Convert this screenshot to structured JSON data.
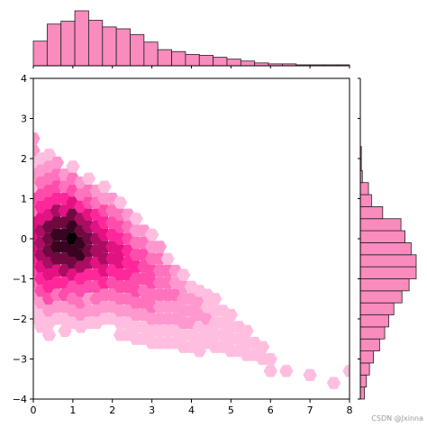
{
  "watermark": "CSDN @Jxinna",
  "chart_data": {
    "type": "hexbin-jointplot",
    "xlim": [
      0,
      8
    ],
    "ylim": [
      -4,
      4
    ],
    "x_ticks": [
      0,
      1,
      2,
      3,
      4,
      5,
      6,
      7,
      8
    ],
    "y_ticks": [
      -4,
      -3,
      -2,
      -1,
      0,
      1,
      2,
      3,
      4
    ],
    "x_tick_labels": [
      "0",
      "1",
      "2",
      "3",
      "4",
      "5",
      "6",
      "7",
      "8"
    ],
    "y_tick_labels": [
      "−4",
      "−3",
      "−2",
      "−1",
      "0",
      "1",
      "2",
      "3",
      "4"
    ],
    "grid": false,
    "colors": {
      "hex_max": "#000000",
      "hex_mid": "#ff1493",
      "hex_min": "#ffe4f0",
      "hist_fill": "#f98bbd",
      "hist_edge": "#222222"
    },
    "hexbin": {
      "columns": [
        {
          "x": 0.0,
          "y0": 2.5,
          "counts": [
            2,
            2,
            1,
            2,
            1,
            4,
            3,
            6,
            6,
            6,
            5,
            4,
            3,
            2,
            1,
            1
          ]
        },
        {
          "x": 0.2,
          "y0": 2.0,
          "counts": [
            1,
            2,
            3,
            4,
            5,
            6,
            7,
            7,
            7,
            6,
            5,
            4,
            2,
            1,
            1
          ]
        },
        {
          "x": 0.4,
          "y0": 2.1,
          "counts": [
            1,
            2,
            3,
            4,
            5,
            6,
            8,
            8,
            8,
            7,
            6,
            5,
            4,
            2,
            1,
            1
          ]
        },
        {
          "x": 0.6,
          "y0": 1.9,
          "counts": [
            2,
            3,
            4,
            5,
            7,
            8,
            9,
            9,
            8,
            6,
            5,
            3,
            2,
            1
          ]
        },
        {
          "x": 0.8,
          "y0": 1.6,
          "counts": [
            2,
            3,
            5,
            6,
            8,
            9,
            9,
            8,
            7,
            5,
            4,
            2,
            1,
            1
          ]
        },
        {
          "x": 1.0,
          "y0": 1.8,
          "counts": [
            1,
            3,
            4,
            6,
            8,
            9,
            10,
            9,
            8,
            6,
            4,
            3,
            2,
            1
          ]
        },
        {
          "x": 1.2,
          "y0": 1.4,
          "counts": [
            2,
            3,
            5,
            7,
            8,
            9,
            9,
            7,
            5,
            4,
            3,
            2,
            1
          ]
        },
        {
          "x": 1.4,
          "y0": 1.5,
          "counts": [
            1,
            3,
            4,
            6,
            7,
            8,
            8,
            7,
            5,
            4,
            2,
            2,
            1
          ]
        },
        {
          "x": 1.6,
          "y0": 1.2,
          "counts": [
            2,
            3,
            5,
            6,
            7,
            7,
            6,
            5,
            4,
            3,
            2,
            1
          ]
        },
        {
          "x": 1.8,
          "y0": 1.3,
          "counts": [
            1,
            2,
            4,
            5,
            6,
            7,
            7,
            6,
            5,
            3,
            2,
            1
          ]
        },
        {
          "x": 2.0,
          "y0": 1.0,
          "counts": [
            2,
            3,
            4,
            5,
            6,
            6,
            5,
            4,
            3,
            2,
            1
          ]
        },
        {
          "x": 2.2,
          "y0": 0.9,
          "counts": [
            1,
            3,
            4,
            5,
            6,
            6,
            5,
            4,
            3,
            2,
            1,
            1
          ]
        },
        {
          "x": 2.4,
          "y0": 0.6,
          "counts": [
            2,
            3,
            4,
            5,
            5,
            5,
            4,
            3,
            2,
            1,
            1
          ]
        },
        {
          "x": 2.6,
          "y0": 0.5,
          "counts": [
            1,
            2,
            3,
            4,
            5,
            4,
            4,
            3,
            2,
            1,
            1
          ]
        },
        {
          "x": 2.8,
          "y0": 0.2,
          "counts": [
            2,
            3,
            4,
            4,
            4,
            3,
            3,
            2,
            1,
            1
          ]
        },
        {
          "x": 3.0,
          "y0": 0.1,
          "counts": [
            1,
            2,
            3,
            4,
            4,
            3,
            3,
            2,
            1,
            1
          ]
        },
        {
          "x": 3.2,
          "y0": -0.2,
          "counts": [
            2,
            3,
            3,
            3,
            3,
            2,
            2,
            1,
            1
          ]
        },
        {
          "x": 3.4,
          "y0": -0.5,
          "counts": [
            1,
            3,
            3,
            3,
            2,
            2,
            1,
            1
          ]
        },
        {
          "x": 3.6,
          "y0": -0.8,
          "counts": [
            2,
            2,
            3,
            2,
            2,
            1,
            1
          ]
        },
        {
          "x": 3.8,
          "y0": -0.9,
          "counts": [
            1,
            2,
            2,
            2,
            2,
            1,
            1
          ]
        },
        {
          "x": 4.0,
          "y0": -1.2,
          "counts": [
            1,
            2,
            2,
            2,
            1,
            1
          ]
        },
        {
          "x": 4.2,
          "y0": -1.3,
          "counts": [
            1,
            2,
            2,
            1,
            1,
            1
          ]
        },
        {
          "x": 4.4,
          "y0": -1.4,
          "counts": [
            1,
            1,
            2,
            1,
            1
          ]
        },
        {
          "x": 4.6,
          "y0": -1.5,
          "counts": [
            1,
            1,
            1,
            1,
            1
          ]
        },
        {
          "x": 4.8,
          "y0": -1.8,
          "counts": [
            1,
            1,
            1,
            1
          ]
        },
        {
          "x": 5.0,
          "y0": -1.9,
          "counts": [
            1,
            1,
            1,
            1
          ]
        },
        {
          "x": 5.2,
          "y0": -2.2,
          "counts": [
            1,
            1,
            1
          ]
        },
        {
          "x": 5.4,
          "y0": -2.3,
          "counts": [
            1,
            1,
            1
          ]
        },
        {
          "x": 5.6,
          "y0": -2.6,
          "counts": [
            1,
            1
          ]
        },
        {
          "x": 5.8,
          "y0": -2.7,
          "counts": [
            1,
            1
          ]
        },
        {
          "x": 6.0,
          "y0": -3.0,
          "counts": [
            1,
            1
          ]
        },
        {
          "x": 6.4,
          "y0": -3.3,
          "counts": [
            1
          ]
        },
        {
          "x": 7.0,
          "y0": -3.4,
          "counts": [
            1
          ]
        },
        {
          "x": 7.6,
          "y0": -3.6,
          "counts": [
            1
          ]
        },
        {
          "x": 8.0,
          "y0": -3.3,
          "counts": [
            1
          ]
        }
      ]
    },
    "x_marginal_histogram": {
      "bin_edges": [
        0,
        0.35,
        0.7,
        1.05,
        1.4,
        1.75,
        2.1,
        2.45,
        2.8,
        3.15,
        3.5,
        3.85,
        4.2,
        4.55,
        4.9,
        5.25,
        5.6,
        5.95,
        6.3,
        6.65,
        7.0,
        7.35,
        7.7,
        8.0
      ],
      "counts": [
        26,
        44,
        47,
        58,
        48,
        41,
        39,
        33,
        25,
        17,
        15,
        12,
        11,
        9,
        7,
        5,
        3,
        2,
        2,
        1,
        1,
        1,
        1
      ]
    },
    "y_marginal_histogram": {
      "bin_edges": [
        -4.0,
        -3.7,
        -3.4,
        -3.1,
        -2.8,
        -2.5,
        -2.2,
        -1.9,
        -1.6,
        -1.3,
        -1.0,
        -0.7,
        -0.4,
        -0.1,
        0.2,
        0.5,
        0.8,
        1.1,
        1.4,
        1.7,
        2.0,
        2.3
      ],
      "counts": [
        4,
        6,
        9,
        13,
        19,
        24,
        28,
        33,
        41,
        48,
        55,
        55,
        50,
        44,
        40,
        22,
        11,
        8,
        2,
        1,
        1
      ]
    }
  }
}
